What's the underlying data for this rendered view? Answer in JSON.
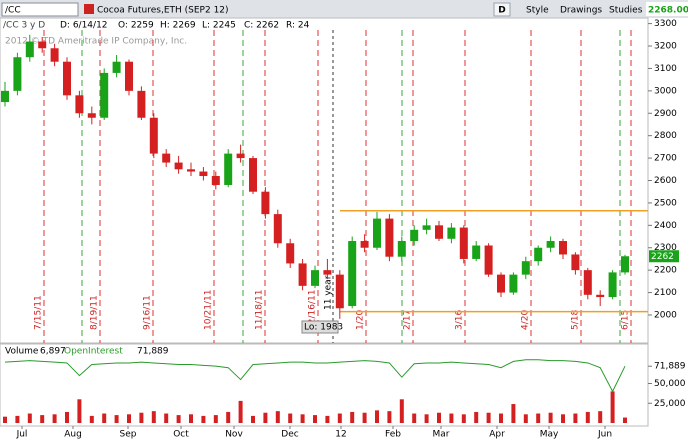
{
  "toolbar": {
    "symbol": "/CC",
    "description": "Cocoa Futures,ETH (SEP2 12)",
    "period_button": "D",
    "style": "Style",
    "drawings": "Drawings",
    "studies": "Studies",
    "last_price": "2268.00"
  },
  "header": {
    "study": "/CC 3 y D",
    "date": "D: 6/14/12",
    "open": "O: 2259",
    "high": "H: 2269",
    "low": "L: 2245",
    "close": "C: 2262",
    "range": "R: 24"
  },
  "watermark": "2012 © TD Ameritrade IP Company, Inc.",
  "price_label": "2262",
  "low_label": "Lo: 1983",
  "year_marker": "11 year",
  "event_labels": [
    "7/15/11",
    "8/19/11",
    "9/16/11",
    "10/21/11",
    "11/18/11",
    "12/16/11",
    "1/20",
    "2/17",
    "3/16",
    "4/20",
    "5/18",
    "6/15"
  ],
  "months": [
    "Jul",
    "Aug",
    "Sep",
    "Oct",
    "Nov",
    "Dec",
    "12",
    "Feb",
    "Mar",
    "Apr",
    "May",
    "Jun"
  ],
  "chart_data": {
    "type": "candlestick",
    "ylim": [
      1875,
      3325
    ],
    "yticks": [
      2000,
      2100,
      2200,
      2300,
      2400,
      2500,
      2600,
      2700,
      2800,
      2900,
      3000,
      3100,
      3200,
      3300
    ],
    "levels": [
      2465,
      2015
    ],
    "up_color": "#19a319",
    "down_color": "#d42020",
    "open": [
      2950,
      3000,
      3150,
      3220,
      3190,
      3130,
      2980,
      2900,
      2880,
      3080,
      3130,
      3000,
      2880,
      2720,
      2680,
      2650,
      2640,
      2620,
      2580,
      2720,
      2700,
      2550,
      2450,
      2320,
      2230,
      2130,
      2200,
      2180,
      2040,
      2330,
      2300,
      2430,
      2260,
      2330,
      2380,
      2400,
      2340,
      2390,
      2250,
      2310,
      2180,
      2100,
      2180,
      2240,
      2300,
      2330,
      2270,
      2200,
      2090,
      2080,
      2190
    ],
    "high": [
      3040,
      3170,
      3250,
      3240,
      3210,
      3150,
      3000,
      2930,
      3100,
      3160,
      3140,
      3020,
      2900,
      2740,
      2710,
      2680,
      2660,
      2640,
      2740,
      2760,
      2710,
      2570,
      2470,
      2340,
      2250,
      2220,
      2250,
      2200,
      2350,
      2360,
      2460,
      2450,
      2350,
      2400,
      2430,
      2420,
      2410,
      2400,
      2330,
      2320,
      2190,
      2190,
      2260,
      2310,
      2350,
      2340,
      2280,
      2210,
      2110,
      2200,
      2269
    ],
    "low": [
      2930,
      2980,
      3130,
      3170,
      3110,
      2960,
      2880,
      2850,
      2870,
      3060,
      2980,
      2870,
      2700,
      2660,
      2630,
      2620,
      2600,
      2560,
      2570,
      2680,
      2540,
      2430,
      2300,
      2210,
      2110,
      2120,
      2160,
      1983,
      2030,
      2280,
      2290,
      2240,
      2240,
      2310,
      2360,
      2330,
      2320,
      2230,
      2240,
      2170,
      2080,
      2090,
      2160,
      2220,
      2280,
      2250,
      2180,
      2070,
      2040,
      2070,
      2180
    ],
    "close": [
      3000,
      3150,
      3220,
      3190,
      3130,
      2980,
      2900,
      2880,
      3080,
      3130,
      3000,
      2880,
      2720,
      2680,
      2650,
      2640,
      2620,
      2580,
      2720,
      2700,
      2550,
      2450,
      2320,
      2230,
      2130,
      2200,
      2180,
      2030,
      2330,
      2300,
      2430,
      2260,
      2330,
      2380,
      2400,
      2340,
      2390,
      2250,
      2310,
      2180,
      2100,
      2180,
      2240,
      2300,
      2330,
      2270,
      2200,
      2090,
      2080,
      2190,
      2262
    ]
  },
  "volume_panel": {
    "label": "Volume",
    "volume_value": "6,897",
    "oi_label": "OpenInterest",
    "oi_value": "71,889",
    "ylim": [
      0,
      100000
    ],
    "yticks": [
      {
        "value": 25000,
        "label": "25,000"
      },
      {
        "value": 50000,
        "label": "50,000"
      },
      {
        "value": 71889,
        "label": "71,889"
      }
    ],
    "volume_color": "#d42020",
    "oi_color": "#2a9a2a",
    "volume": [
      8000,
      9000,
      12000,
      10000,
      11000,
      14000,
      30000,
      9000,
      12000,
      10000,
      11000,
      13000,
      15000,
      12000,
      10000,
      11000,
      9000,
      10000,
      14000,
      28000,
      9000,
      13000,
      15000,
      12000,
      11000,
      10000,
      9000,
      12000,
      14000,
      13000,
      16000,
      15000,
      30000,
      12000,
      11000,
      13000,
      12000,
      11000,
      14000,
      13000,
      12000,
      24000,
      11000,
      12000,
      13000,
      11000,
      12000,
      14000,
      15000,
      40000,
      6897
    ],
    "open_interest": [
      77000,
      78000,
      79000,
      78000,
      77000,
      76000,
      60000,
      74000,
      75000,
      76000,
      76000,
      77000,
      76000,
      75000,
      74000,
      74000,
      73000,
      72000,
      70000,
      55000,
      74000,
      75000,
      76000,
      77000,
      77000,
      76000,
      76000,
      77000,
      78000,
      79000,
      78000,
      76000,
      58000,
      75000,
      76000,
      76000,
      77000,
      76000,
      75000,
      74000,
      70000,
      78000,
      80000,
      80000,
      79000,
      79000,
      78000,
      76000,
      70000,
      40000,
      71889
    ]
  }
}
